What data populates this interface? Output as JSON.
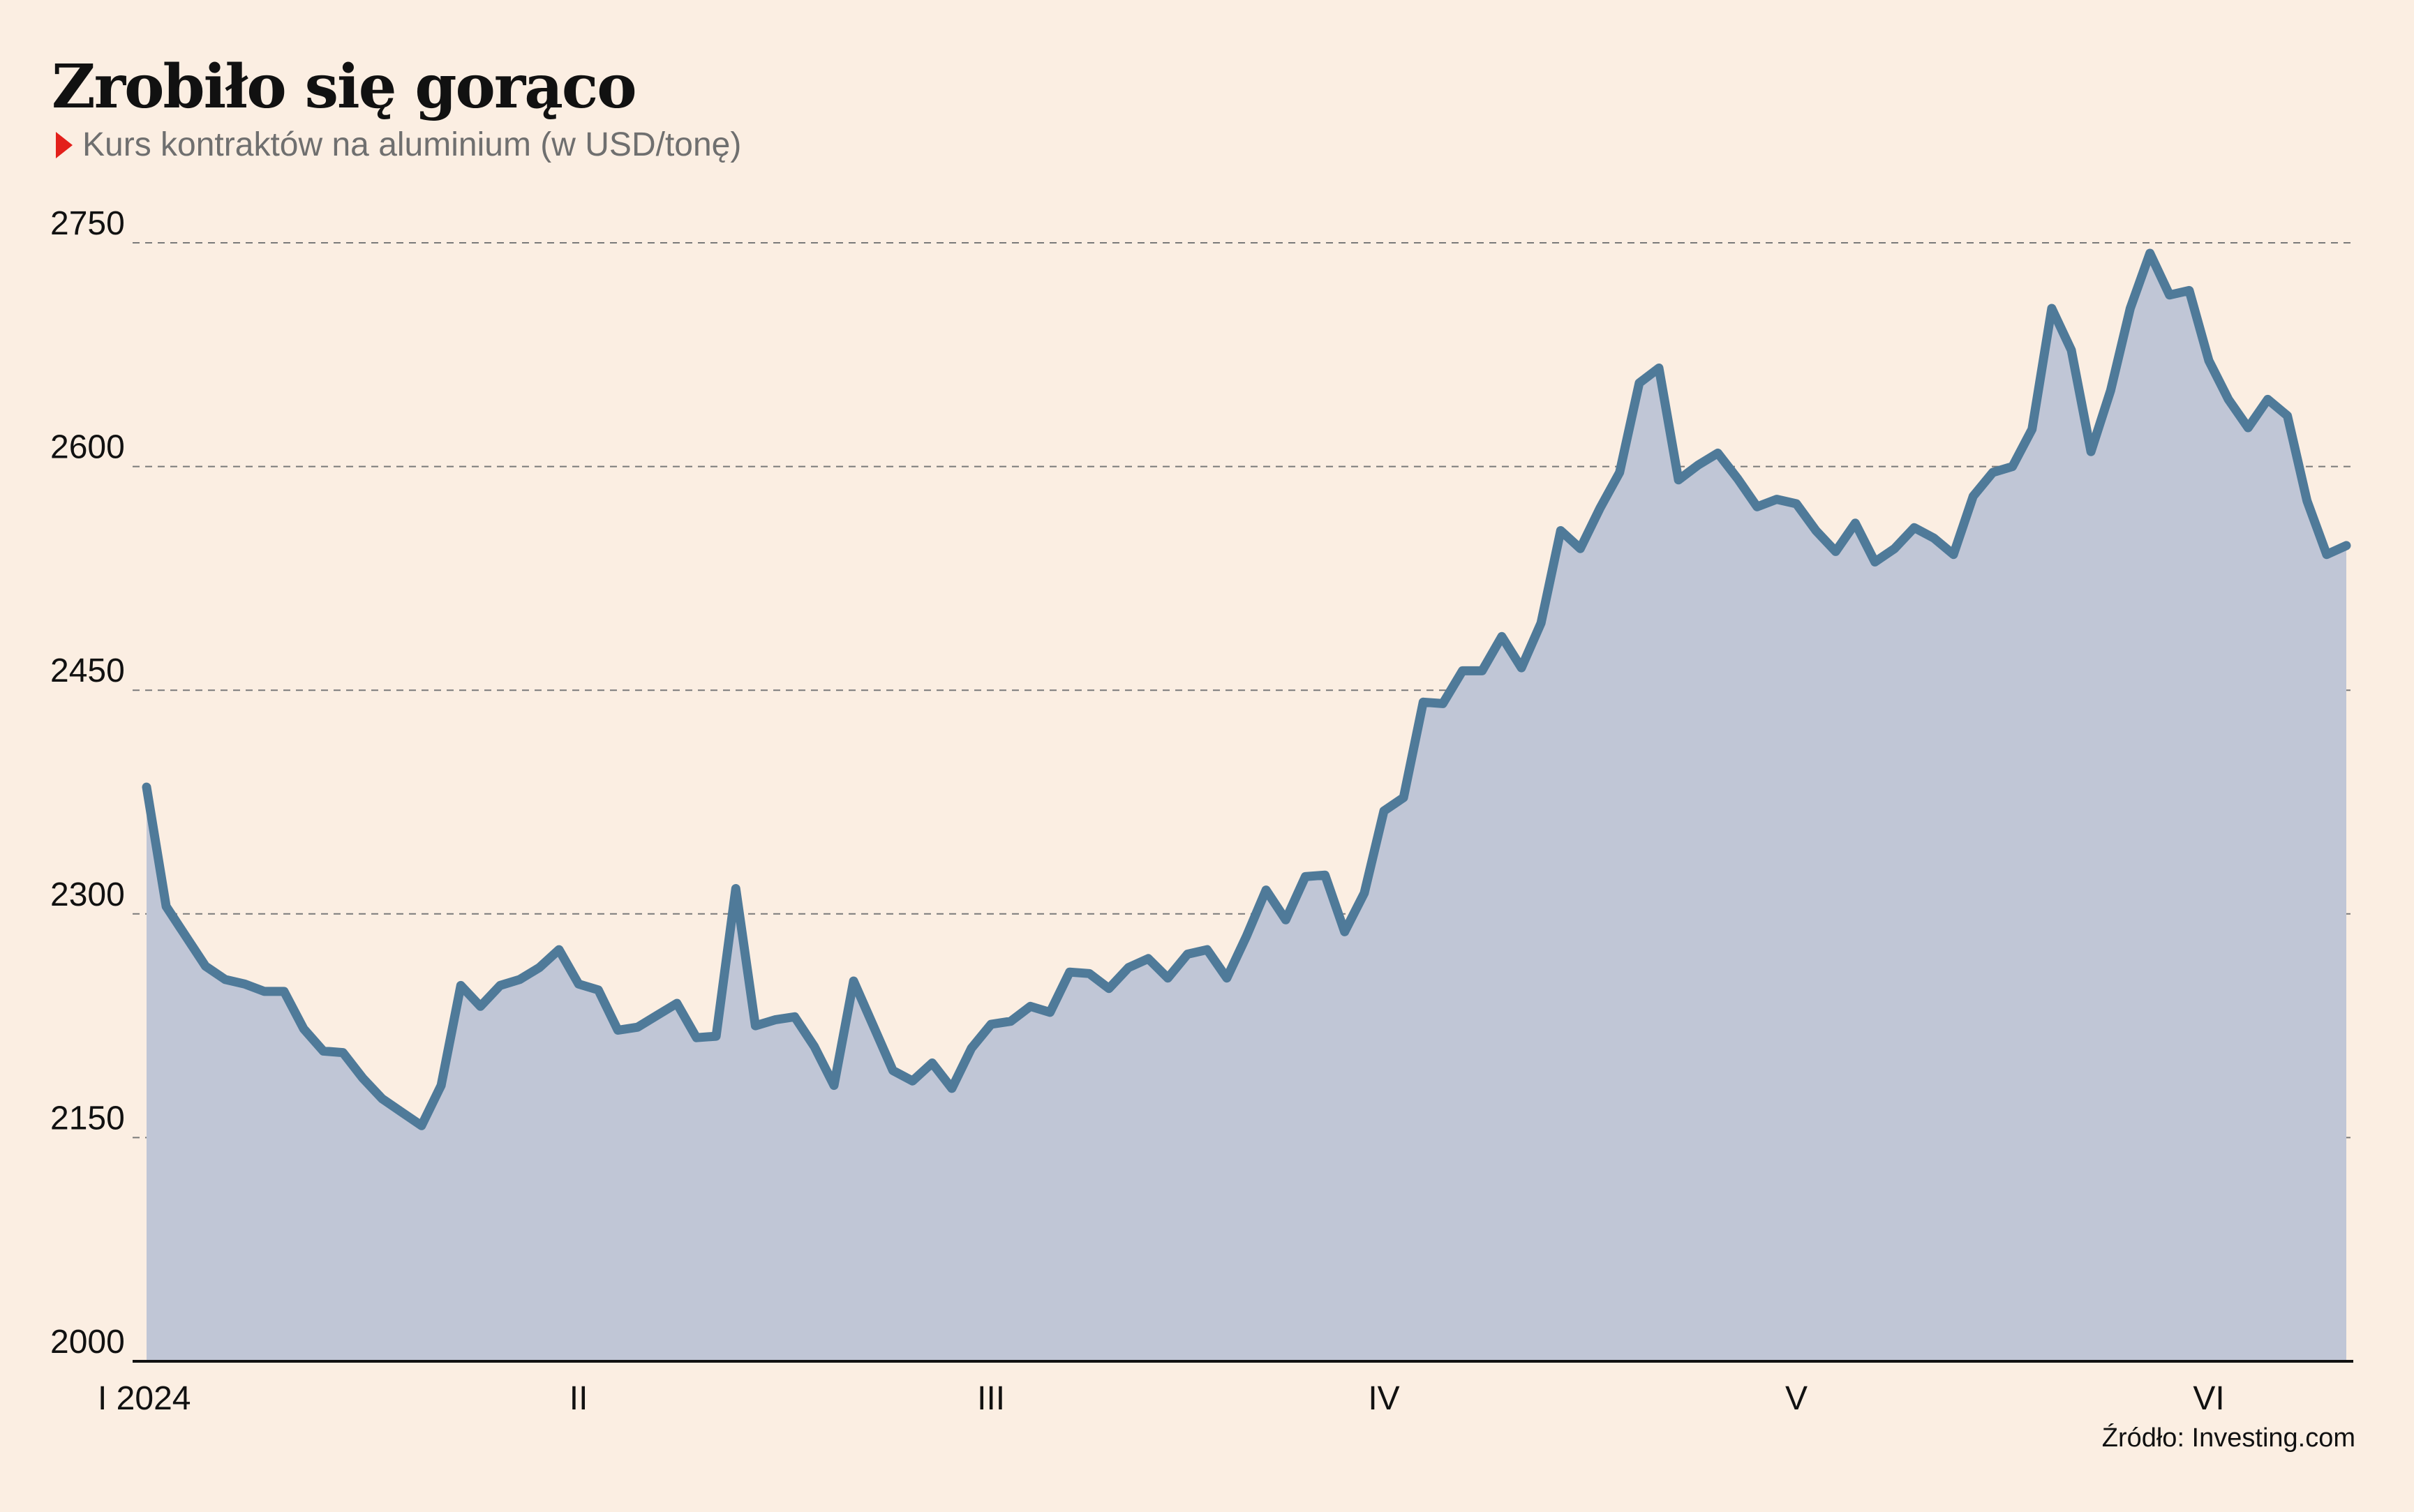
{
  "title": "Zrobiło się gorąco",
  "subtitle": "Kurs kontraktów na aluminium (w USD/tonę)",
  "source": "Źródło: Investing.com",
  "colors": {
    "background": "#fbeee2",
    "area_fill": "#c0c6d6",
    "line": "#4f7a99",
    "marker": "#e3201b",
    "grid": "#7a7a7a"
  },
  "chart_data": {
    "type": "area",
    "title": "Zrobiło się gorąco",
    "subtitle": "Kurs kontraktów na aluminium (w USD/tonę)",
    "xlabel": "",
    "ylabel": "",
    "ylim": [
      2000,
      2750
    ],
    "yticks": [
      2000,
      2150,
      2300,
      2450,
      2600,
      2750
    ],
    "ytick_labels": [
      "2000",
      "2150",
      "2300",
      "2450",
      "2600",
      "2750"
    ],
    "x_ticks": [
      {
        "label": "I 2024",
        "pos": 0
      },
      {
        "label": "II",
        "pos": 22
      },
      {
        "label": "III",
        "pos": 43
      },
      {
        "label": "IV",
        "pos": 63
      },
      {
        "label": "V",
        "pos": 84
      },
      {
        "label": "VI",
        "pos": 105
      }
    ],
    "grid": "horizontal dashed",
    "series": [
      {
        "values": [
          2385,
          2305,
          2285,
          2265,
          2256,
          2253,
          2248,
          2248,
          2223,
          2208,
          2207,
          2190,
          2176,
          2167,
          2158,
          2185,
          2252,
          2238,
          2252,
          2256,
          2264,
          2276,
          2253,
          2249,
          2222,
          2224,
          2232,
          2240,
          2217,
          2218,
          2317,
          2225,
          2229,
          2231,
          2211,
          2185,
          2255,
          2225,
          2195,
          2188,
          2200,
          2183,
          2210,
          2226,
          2228,
          2238,
          2234,
          2261,
          2260,
          2250,
          2264,
          2270,
          2257,
          2273,
          2276,
          2257,
          2285,
          2316,
          2296,
          2325,
          2326,
          2288,
          2314,
          2369,
          2378,
          2442,
          2441,
          2463,
          2463,
          2486,
          2465,
          2495,
          2557,
          2545,
          2572,
          2596,
          2656,
          2666,
          2591,
          2601,
          2609,
          2592,
          2573,
          2578,
          2575,
          2557,
          2543,
          2562,
          2536,
          2545,
          2559,
          2552,
          2541,
          2580,
          2596,
          2600,
          2625,
          2706,
          2678,
          2610,
          2651,
          2706,
          2743,
          2715,
          2718,
          2671,
          2645,
          2626,
          2645,
          2634,
          2577,
          2541,
          2547
        ]
      }
    ]
  }
}
